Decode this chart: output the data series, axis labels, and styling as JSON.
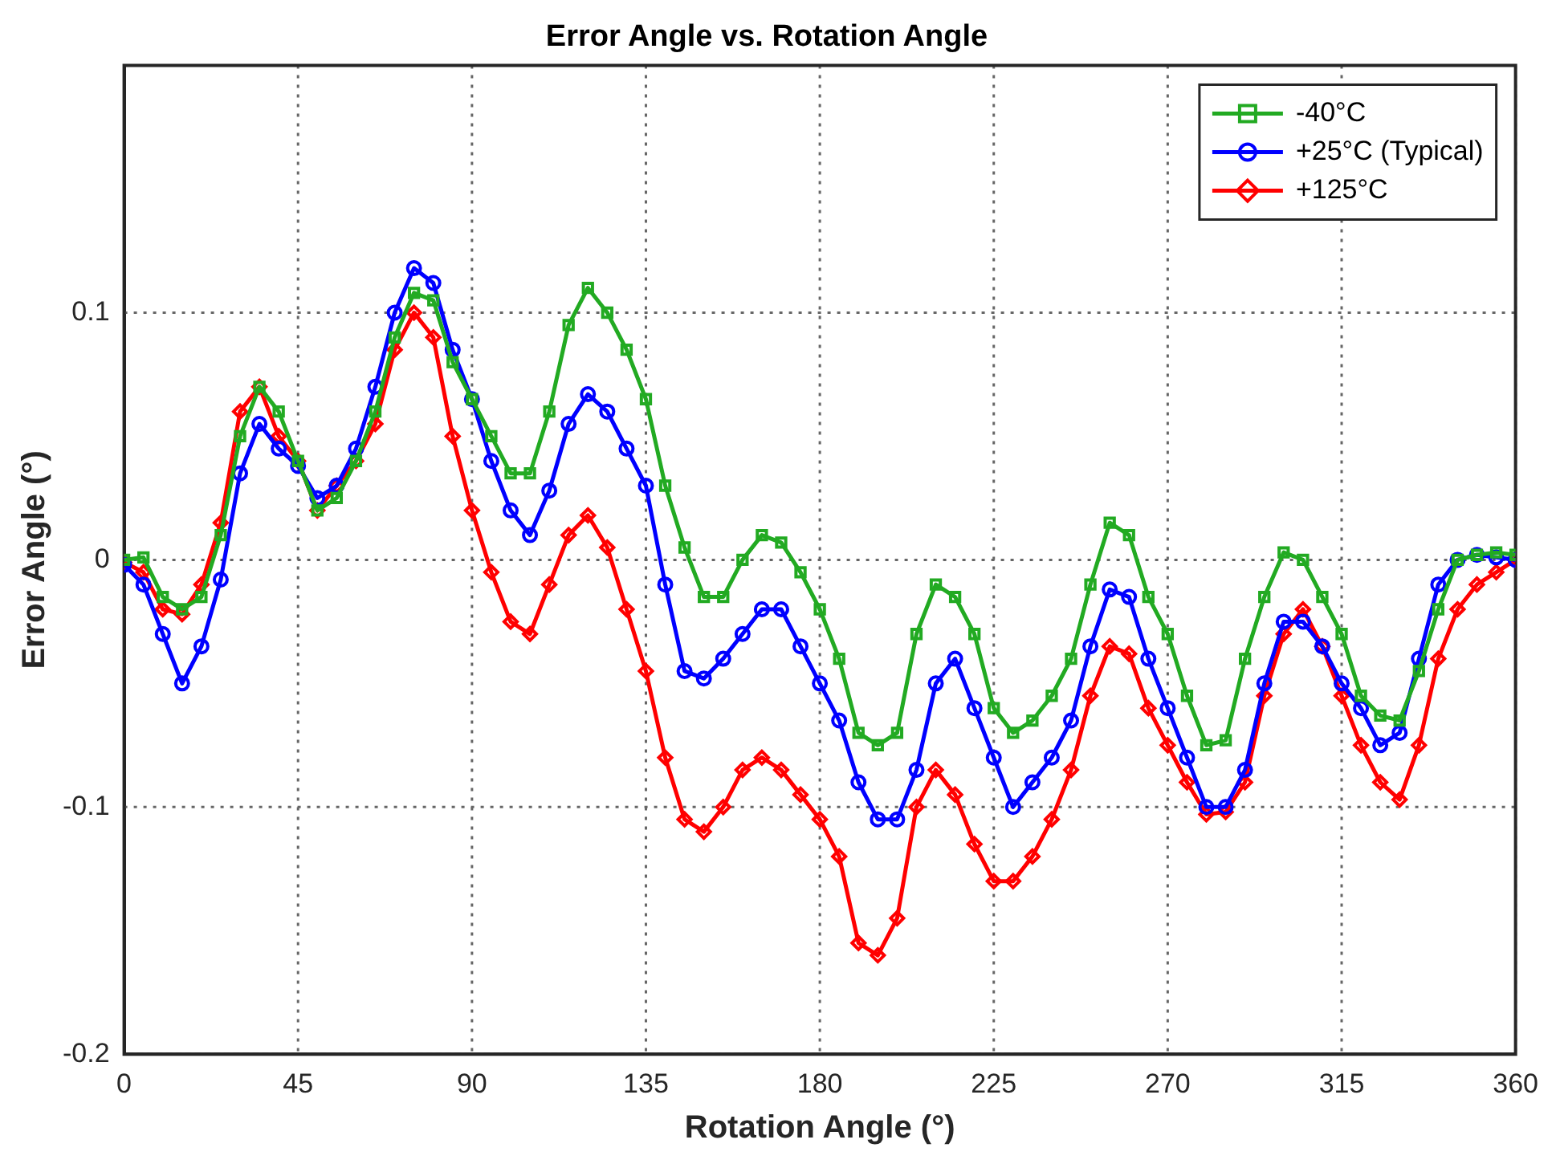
{
  "chart_data": {
    "type": "line",
    "title": "Error Angle vs. Rotation Angle",
    "xlabel": "Rotation Angle (°)",
    "ylabel": "Error Angle (°)",
    "x": [
      0,
      5,
      10,
      15,
      20,
      25,
      30,
      35,
      40,
      45,
      50,
      55,
      60,
      65,
      70,
      75,
      80,
      85,
      90,
      95,
      100,
      105,
      110,
      115,
      120,
      125,
      130,
      135,
      140,
      145,
      150,
      155,
      160,
      165,
      170,
      175,
      180,
      185,
      190,
      195,
      200,
      205,
      210,
      215,
      220,
      225,
      230,
      235,
      240,
      245,
      250,
      255,
      260,
      265,
      270,
      275,
      280,
      285,
      290,
      295,
      300,
      305,
      310,
      315,
      320,
      325,
      330,
      335,
      340,
      345,
      350,
      355,
      360
    ],
    "series": [
      {
        "name": "-40°C",
        "color": "#22aa22",
        "marker": "square",
        "values": [
          0,
          0.001,
          -0.015,
          -0.02,
          -0.015,
          0.01,
          0.05,
          0.07,
          0.06,
          0.04,
          0.02,
          0.025,
          0.04,
          0.06,
          0.09,
          0.108,
          0.105,
          0.08,
          0.065,
          0.05,
          0.035,
          0.035,
          0.06,
          0.095,
          0.11,
          0.1,
          0.085,
          0.065,
          0.03,
          0.005,
          -0.015,
          -0.015,
          0,
          0.01,
          0.007,
          -0.005,
          -0.02,
          -0.04,
          -0.07,
          -0.075,
          -0.07,
          -0.03,
          -0.01,
          -0.015,
          -0.03,
          -0.06,
          -0.07,
          -0.065,
          -0.055,
          -0.04,
          -0.01,
          0.015,
          0.01,
          -0.015,
          -0.03,
          -0.055,
          -0.075,
          -0.073,
          -0.04,
          -0.015,
          0.003,
          0,
          -0.015,
          -0.03,
          -0.055,
          -0.063,
          -0.065,
          -0.045,
          -0.02,
          0,
          0.002,
          0.003,
          0.002
        ]
      },
      {
        "name": "+25°C (Typical)",
        "color": "#0000ff",
        "marker": "circle",
        "values": [
          -0.002,
          -0.01,
          -0.03,
          -0.05,
          -0.035,
          -0.008,
          0.035,
          0.055,
          0.045,
          0.038,
          0.025,
          0.03,
          0.045,
          0.07,
          0.1,
          0.118,
          0.112,
          0.085,
          0.065,
          0.04,
          0.02,
          0.01,
          0.028,
          0.055,
          0.067,
          0.06,
          0.045,
          0.03,
          -0.01,
          -0.045,
          -0.048,
          -0.04,
          -0.03,
          -0.02,
          -0.02,
          -0.035,
          -0.05,
          -0.065,
          -0.09,
          -0.105,
          -0.105,
          -0.085,
          -0.05,
          -0.04,
          -0.06,
          -0.08,
          -0.1,
          -0.09,
          -0.08,
          -0.065,
          -0.035,
          -0.012,
          -0.015,
          -0.04,
          -0.06,
          -0.08,
          -0.1,
          -0.1,
          -0.085,
          -0.05,
          -0.025,
          -0.025,
          -0.035,
          -0.05,
          -0.06,
          -0.075,
          -0.07,
          -0.04,
          -0.01,
          0,
          0.002,
          0.001,
          0
        ]
      },
      {
        "name": "+125°C",
        "color": "#ff0000",
        "marker": "diamond",
        "values": [
          -0.001,
          -0.005,
          -0.02,
          -0.022,
          -0.01,
          0.015,
          0.06,
          0.07,
          0.05,
          0.04,
          0.02,
          0.03,
          0.04,
          0.055,
          0.085,
          0.1,
          0.09,
          0.05,
          0.02,
          -0.005,
          -0.025,
          -0.03,
          -0.01,
          0.01,
          0.018,
          0.005,
          -0.02,
          -0.045,
          -0.08,
          -0.105,
          -0.11,
          -0.1,
          -0.085,
          -0.08,
          -0.085,
          -0.095,
          -0.105,
          -0.12,
          -0.155,
          -0.16,
          -0.145,
          -0.1,
          -0.085,
          -0.095,
          -0.115,
          -0.13,
          -0.13,
          -0.12,
          -0.105,
          -0.085,
          -0.055,
          -0.035,
          -0.038,
          -0.06,
          -0.075,
          -0.09,
          -0.103,
          -0.102,
          -0.09,
          -0.055,
          -0.03,
          -0.02,
          -0.035,
          -0.055,
          -0.075,
          -0.09,
          -0.097,
          -0.075,
          -0.04,
          -0.02,
          -0.01,
          -0.005,
          0
        ]
      }
    ],
    "xlim": [
      0,
      360
    ],
    "xticks": [
      0,
      45,
      90,
      135,
      180,
      225,
      270,
      315,
      360
    ],
    "ylim": [
      -0.2,
      0.2
    ],
    "yticks": [
      -0.2,
      -0.1,
      0,
      0.1
    ],
    "grid": true,
    "legend": "top right",
    "line_style": "solid"
  }
}
